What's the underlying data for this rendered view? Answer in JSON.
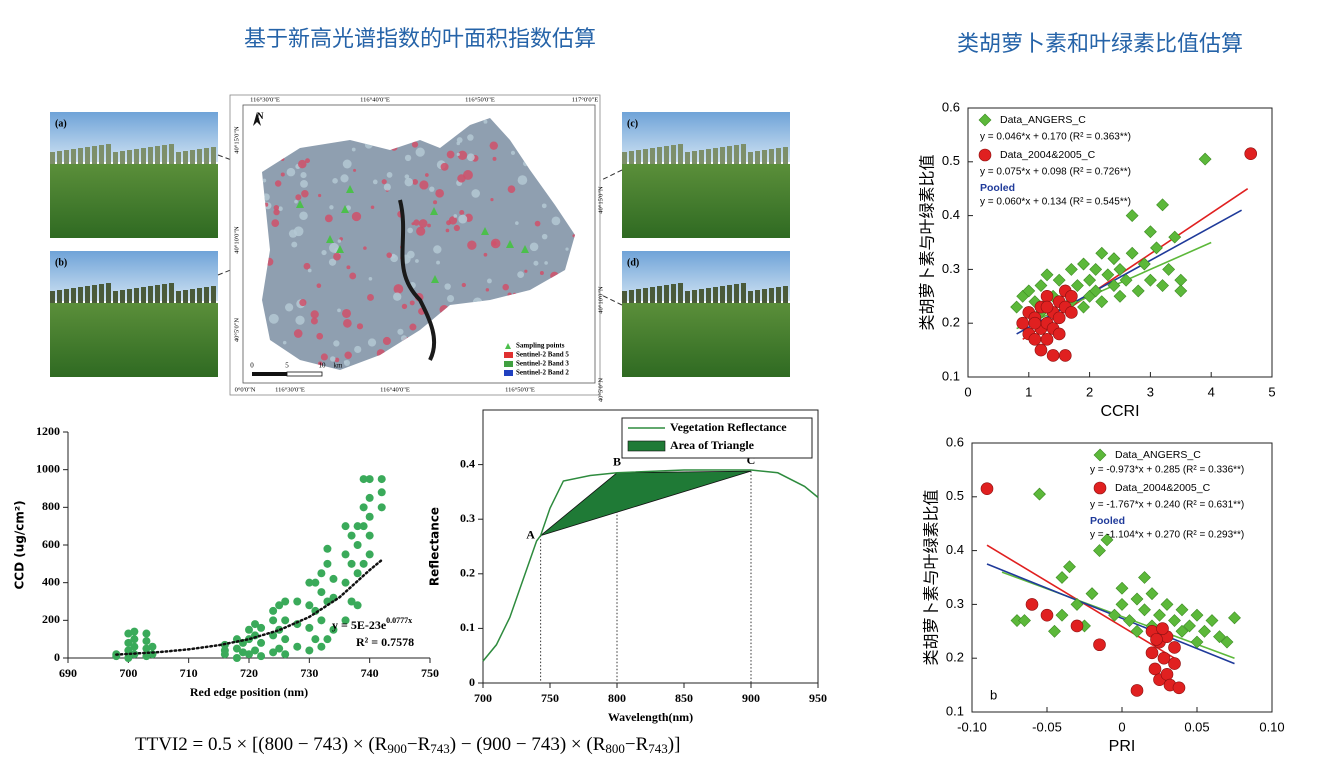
{
  "titles": {
    "left": "基于新高光谱指数的叶面积指数估算",
    "right": "类胡萝卜素和叶绿素比值估算"
  },
  "map": {
    "photo_labels": [
      "(a)",
      "(b)",
      "(c)",
      "(d)"
    ],
    "coords_top": [
      "116°30'0\"E",
      "116°40'0\"E",
      "116°50'0\"E",
      "117°0'0\"E"
    ],
    "coords_bottom": [
      "0°0'0\"N",
      "116°30'0\"E",
      "116°40'0\"E",
      "116°50'0\"E"
    ],
    "coords_side": [
      "40°15'0\"N",
      "40°10'0\"N",
      "40°5'0\"N"
    ],
    "north": "N",
    "legend": [
      "Sampling points",
      "Sentinel-2 Band 5",
      "Sentinel-2 Band 3",
      "Sentinel-2 Band 2"
    ],
    "scale": [
      "0",
      "5",
      "10",
      "km"
    ]
  },
  "formula": [
    "TTVI2 = 0.5 × [(800 − 743) × (R",
    "900",
    "−R",
    "743",
    ") − (900 − 743) × (R",
    "800",
    "−R",
    "743",
    ")]"
  ],
  "chart_data": [
    {
      "type": "scatter",
      "x_label": "Red edge position (nm)",
      "y_label": "CCD (ug/cm²)",
      "xlim": [
        690,
        750
      ],
      "xticks": [
        690,
        700,
        710,
        720,
        730,
        740,
        750
      ],
      "ylim": [
        0,
        1200
      ],
      "yticks": [
        0,
        200,
        400,
        600,
        800,
        1000,
        1200
      ],
      "series": [
        {
          "color": "#3aaa5a",
          "marker": "circle",
          "x": [
            698,
            698,
            700,
            700,
            700,
            700,
            701,
            701,
            701,
            701,
            703,
            703,
            703,
            703,
            704,
            704,
            716,
            716,
            716,
            718,
            718,
            718,
            719,
            719,
            720,
            720,
            720,
            721,
            721,
            721,
            722,
            722,
            722,
            724,
            724,
            724,
            724,
            725,
            725,
            725,
            726,
            726,
            726,
            726,
            728,
            728,
            728,
            730,
            730,
            730,
            730,
            731,
            731,
            731,
            732,
            732,
            732,
            732,
            733,
            733,
            733,
            733,
            734,
            734,
            734,
            736,
            736,
            736,
            736,
            737,
            737,
            737,
            738,
            738,
            738,
            738,
            739,
            739,
            739,
            739,
            740,
            740,
            740,
            740,
            740,
            742,
            742,
            742
          ],
          "values": [
            10,
            20,
            0,
            40,
            80,
            130,
            20,
            60,
            100,
            140,
            10,
            50,
            90,
            130,
            20,
            60,
            20,
            40,
            70,
            0,
            50,
            100,
            30,
            80,
            20,
            100,
            150,
            40,
            120,
            180,
            10,
            80,
            160,
            30,
            120,
            200,
            250,
            50,
            150,
            280,
            20,
            100,
            200,
            300,
            60,
            180,
            300,
            40,
            160,
            280,
            400,
            100,
            250,
            400,
            60,
            200,
            350,
            450,
            100,
            300,
            500,
            580,
            150,
            320,
            420,
            200,
            400,
            550,
            700,
            300,
            500,
            650,
            280,
            450,
            600,
            700,
            500,
            700,
            800,
            950,
            550,
            650,
            750,
            850,
            950,
            800,
            880,
            950
          ]
        }
      ],
      "trendline": {
        "x": [
          698,
          705,
          710,
          715,
          720,
          725,
          730,
          735,
          740,
          742
        ],
        "values": [
          18,
          31,
          46,
          68,
          100,
          148,
          218,
          322,
          467,
          520
        ]
      },
      "annotations": {
        "equation": "y = 5E-23e",
        "exponent": "0.0777x",
        "r2": "R² = 0.7578"
      }
    },
    {
      "type": "line",
      "x_label": "Wavelength(nm)",
      "y_label": "Reflectance",
      "xlim": [
        700,
        950
      ],
      "xticks": [
        700,
        750,
        800,
        850,
        900,
        950
      ],
      "ylim": [
        0,
        0.5
      ],
      "yticks": [
        0,
        0.1,
        0.2,
        0.3,
        0.4
      ],
      "series": [
        {
          "name": "Vegetation Reflectance",
          "color": "#2e8b3e",
          "x": [
            700,
            710,
            720,
            730,
            740,
            743,
            750,
            760,
            780,
            800,
            850,
            900,
            920,
            940,
            950
          ],
          "values": [
            0.04,
            0.07,
            0.12,
            0.19,
            0.26,
            0.27,
            0.32,
            0.37,
            0.38,
            0.385,
            0.39,
            0.39,
            0.385,
            0.36,
            0.34
          ]
        }
      ],
      "triangle": {
        "name": "Area of Triangle",
        "color": "#1f7a36",
        "labels": [
          "A",
          "B",
          "C"
        ],
        "x": [
          743,
          800,
          900
        ],
        "values": [
          0.27,
          0.385,
          0.388
        ]
      }
    },
    {
      "type": "scatter",
      "x_label": "CCRI",
      "y_label": "类胡萝卜素与叶绿素比值",
      "xlim": [
        0,
        5
      ],
      "xticks": [
        0,
        1,
        2,
        3,
        4,
        5
      ],
      "ylim": [
        0.1,
        0.6
      ],
      "yticks": [
        0.1,
        0.2,
        0.3,
        0.4,
        0.5,
        0.6
      ],
      "series": [
        {
          "name": "Data_ANGERS_C",
          "equation": "y = 0.046*x + 0.170 (R² = 0.363**)",
          "color": "#5cb83a",
          "marker": "diamond",
          "x": [
            0.8,
            0.9,
            1.0,
            1.0,
            1.1,
            1.2,
            1.2,
            1.3,
            1.4,
            1.5,
            1.5,
            1.6,
            1.7,
            1.7,
            1.8,
            1.9,
            1.9,
            2.0,
            2.0,
            2.1,
            2.1,
            2.2,
            2.2,
            2.3,
            2.4,
            2.4,
            2.5,
            2.5,
            2.6,
            2.7,
            2.7,
            2.8,
            2.9,
            3.0,
            3.0,
            3.1,
            3.2,
            3.2,
            3.3,
            3.4,
            3.5,
            3.5,
            3.9
          ],
          "values": [
            0.23,
            0.25,
            0.22,
            0.26,
            0.24,
            0.27,
            0.22,
            0.29,
            0.25,
            0.28,
            0.21,
            0.26,
            0.3,
            0.24,
            0.27,
            0.31,
            0.23,
            0.28,
            0.25,
            0.3,
            0.26,
            0.33,
            0.24,
            0.29,
            0.27,
            0.32,
            0.3,
            0.25,
            0.28,
            0.4,
            0.33,
            0.26,
            0.31,
            0.37,
            0.28,
            0.34,
            0.42,
            0.27,
            0.3,
            0.36,
            0.28,
            0.26,
            0.505
          ]
        },
        {
          "name": "Data_2004&2005_C",
          "equation": "y = 0.075*x + 0.098 (R² = 0.726**)",
          "color": "#e02020",
          "marker": "circle",
          "x": [
            0.9,
            1.0,
            1.0,
            1.1,
            1.1,
            1.2,
            1.2,
            1.2,
            1.3,
            1.3,
            1.3,
            1.4,
            1.4,
            1.4,
            1.5,
            1.5,
            1.5,
            1.6,
            1.6,
            1.6,
            1.7,
            1.7,
            1.3,
            1.1,
            4.65
          ],
          "values": [
            0.2,
            0.18,
            0.22,
            0.17,
            0.21,
            0.19,
            0.23,
            0.15,
            0.2,
            0.25,
            0.17,
            0.22,
            0.14,
            0.19,
            0.24,
            0.21,
            0.18,
            0.23,
            0.26,
            0.14,
            0.22,
            0.25,
            0.23,
            0.2,
            0.515
          ]
        }
      ],
      "pooled": {
        "name": "Pooled",
        "equation": "y = 0.060*x + 0.134 (R² = 0.545**)",
        "color": "#1f3a9a"
      },
      "fits": [
        {
          "color": "#e02020",
          "x": [
            0.9,
            4.6
          ],
          "values": [
            0.17,
            0.45
          ]
        },
        {
          "color": "#5cb83a",
          "x": [
            0.8,
            4.0
          ],
          "values": [
            0.19,
            0.35
          ]
        },
        {
          "color": "#1f3a9a",
          "x": [
            0.8,
            4.5
          ],
          "values": [
            0.18,
            0.41
          ]
        }
      ]
    },
    {
      "type": "scatter",
      "x_label": "PRI",
      "y_label": "类胡萝卜素与叶绿素比值",
      "panel_label": "b",
      "xlim": [
        -0.1,
        0.1
      ],
      "xticks": [
        {
          "value": -0.1,
          "label": "-0.10"
        },
        -0.05,
        0,
        0.05,
        {
          "value": 0.1,
          "label": "0.10"
        }
      ],
      "ylim": [
        0.1,
        0.6
      ],
      "yticks": [
        0.1,
        0.2,
        0.3,
        0.4,
        0.5,
        0.6
      ],
      "series": [
        {
          "name": "Data_ANGERS_C",
          "equation": "y = -0.973*x + 0.285 (R² = 0.336**)",
          "color": "#5cb83a",
          "marker": "diamond",
          "x": [
            -0.07,
            -0.065,
            -0.055,
            -0.04,
            -0.04,
            -0.035,
            -0.03,
            -0.025,
            -0.02,
            -0.015,
            -0.01,
            -0.005,
            0,
            0,
            0.005,
            0.01,
            0.01,
            0.015,
            0.02,
            0.02,
            0.025,
            0.03,
            0.03,
            0.035,
            0.04,
            0.04,
            0.045,
            0.05,
            0.05,
            0.055,
            0.06,
            0.065,
            0.07,
            0.075,
            -0.045,
            0.015
          ],
          "values": [
            0.27,
            0.27,
            0.505,
            0.28,
            0.35,
            0.37,
            0.3,
            0.26,
            0.32,
            0.4,
            0.42,
            0.28,
            0.33,
            0.3,
            0.27,
            0.31,
            0.25,
            0.29,
            0.26,
            0.32,
            0.28,
            0.3,
            0.24,
            0.27,
            0.29,
            0.25,
            0.26,
            0.28,
            0.23,
            0.25,
            0.27,
            0.24,
            0.23,
            0.275,
            0.25,
            0.35
          ]
        },
        {
          "name": "Data_2004&2005_C",
          "equation": "y = -1.767*x + 0.240 (R² = 0.631**)",
          "color": "#e02020",
          "marker": "circle",
          "x": [
            -0.09,
            -0.06,
            -0.05,
            -0.03,
            -0.015,
            0.01,
            0.02,
            0.02,
            0.022,
            0.025,
            0.025,
            0.028,
            0.03,
            0.03,
            0.032,
            0.035,
            0.035,
            0.038,
            0.027,
            0.023
          ],
          "values": [
            0.515,
            0.3,
            0.28,
            0.26,
            0.225,
            0.14,
            0.25,
            0.21,
            0.18,
            0.23,
            0.16,
            0.2,
            0.24,
            0.17,
            0.15,
            0.22,
            0.19,
            0.145,
            0.255,
            0.235
          ]
        }
      ],
      "pooled": {
        "name": "Pooled",
        "equation": "y = -1.104*x + 0.270 (R² = 0.293**)",
        "color": "#1f3a9a"
      },
      "fits": [
        {
          "color": "#e02020",
          "x": [
            -0.09,
            0.035
          ],
          "values": [
            0.41,
            0.2
          ]
        },
        {
          "color": "#5cb83a",
          "x": [
            -0.08,
            0.075
          ],
          "values": [
            0.36,
            0.2
          ]
        },
        {
          "color": "#1f3a9a",
          "x": [
            -0.09,
            0.075
          ],
          "values": [
            0.375,
            0.19
          ]
        }
      ]
    }
  ]
}
